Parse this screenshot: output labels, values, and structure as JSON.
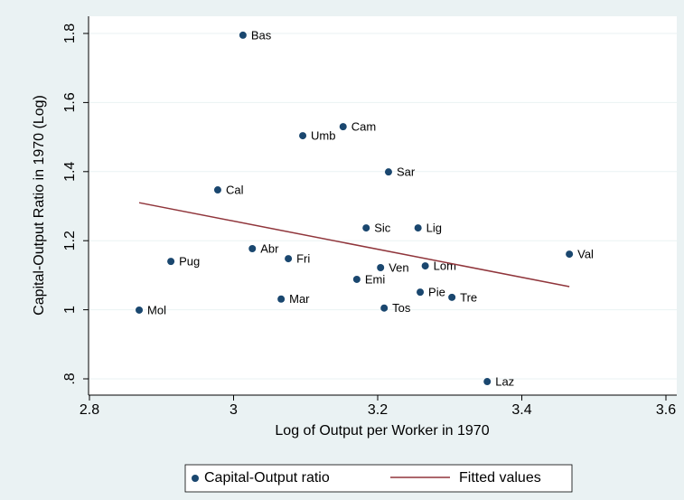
{
  "chart_data": {
    "type": "scatter",
    "xlabel": "Log of Output per Worker in 1970",
    "ylabel": "Capital-Output Ratio in 1970 (Log)",
    "xlim": [
      2.8,
      3.6
    ],
    "xticks": [
      2.8,
      3,
      3.2,
      3.4,
      3.6
    ],
    "ylim": [
      0.8,
      1.8
    ],
    "yticks": [
      {
        "value": 0.8,
        "label": ".8"
      },
      1,
      1.2,
      1.4,
      1.6,
      1.8
    ],
    "grid": true,
    "legend": "bottom",
    "series": [
      {
        "name": "Capital-Output ratio",
        "type": "scatter",
        "color": "#1a476f",
        "x": [
          3.013,
          3.152,
          3.096,
          3.215,
          2.978,
          3.184,
          3.256,
          3.026,
          3.076,
          2.913,
          3.466,
          3.204,
          3.266,
          3.171,
          3.259,
          3.303,
          3.066,
          3.209,
          2.869,
          3.352
        ],
        "values": [
          1.795,
          1.53,
          1.504,
          1.399,
          1.347,
          1.237,
          1.237,
          1.177,
          1.148,
          1.14,
          1.161,
          1.122,
          1.127,
          1.088,
          1.051,
          1.036,
          1.031,
          1.005,
          0.999,
          0.792
        ],
        "labels": [
          "Bas",
          "Cam",
          "Umb",
          "Sar",
          "Cal",
          "Sic",
          "Lig",
          "Abr",
          "Fri",
          "Pug",
          "Val",
          "Ven",
          "Lom",
          "Emi",
          "Pie",
          "Tre",
          "Mar",
          "Tos",
          "Mol",
          "Laz"
        ]
      },
      {
        "name": "Fitted values",
        "type": "line",
        "color": "#90353b",
        "x": [
          2.869,
          3.466
        ],
        "values": [
          1.31,
          1.067
        ]
      }
    ]
  }
}
